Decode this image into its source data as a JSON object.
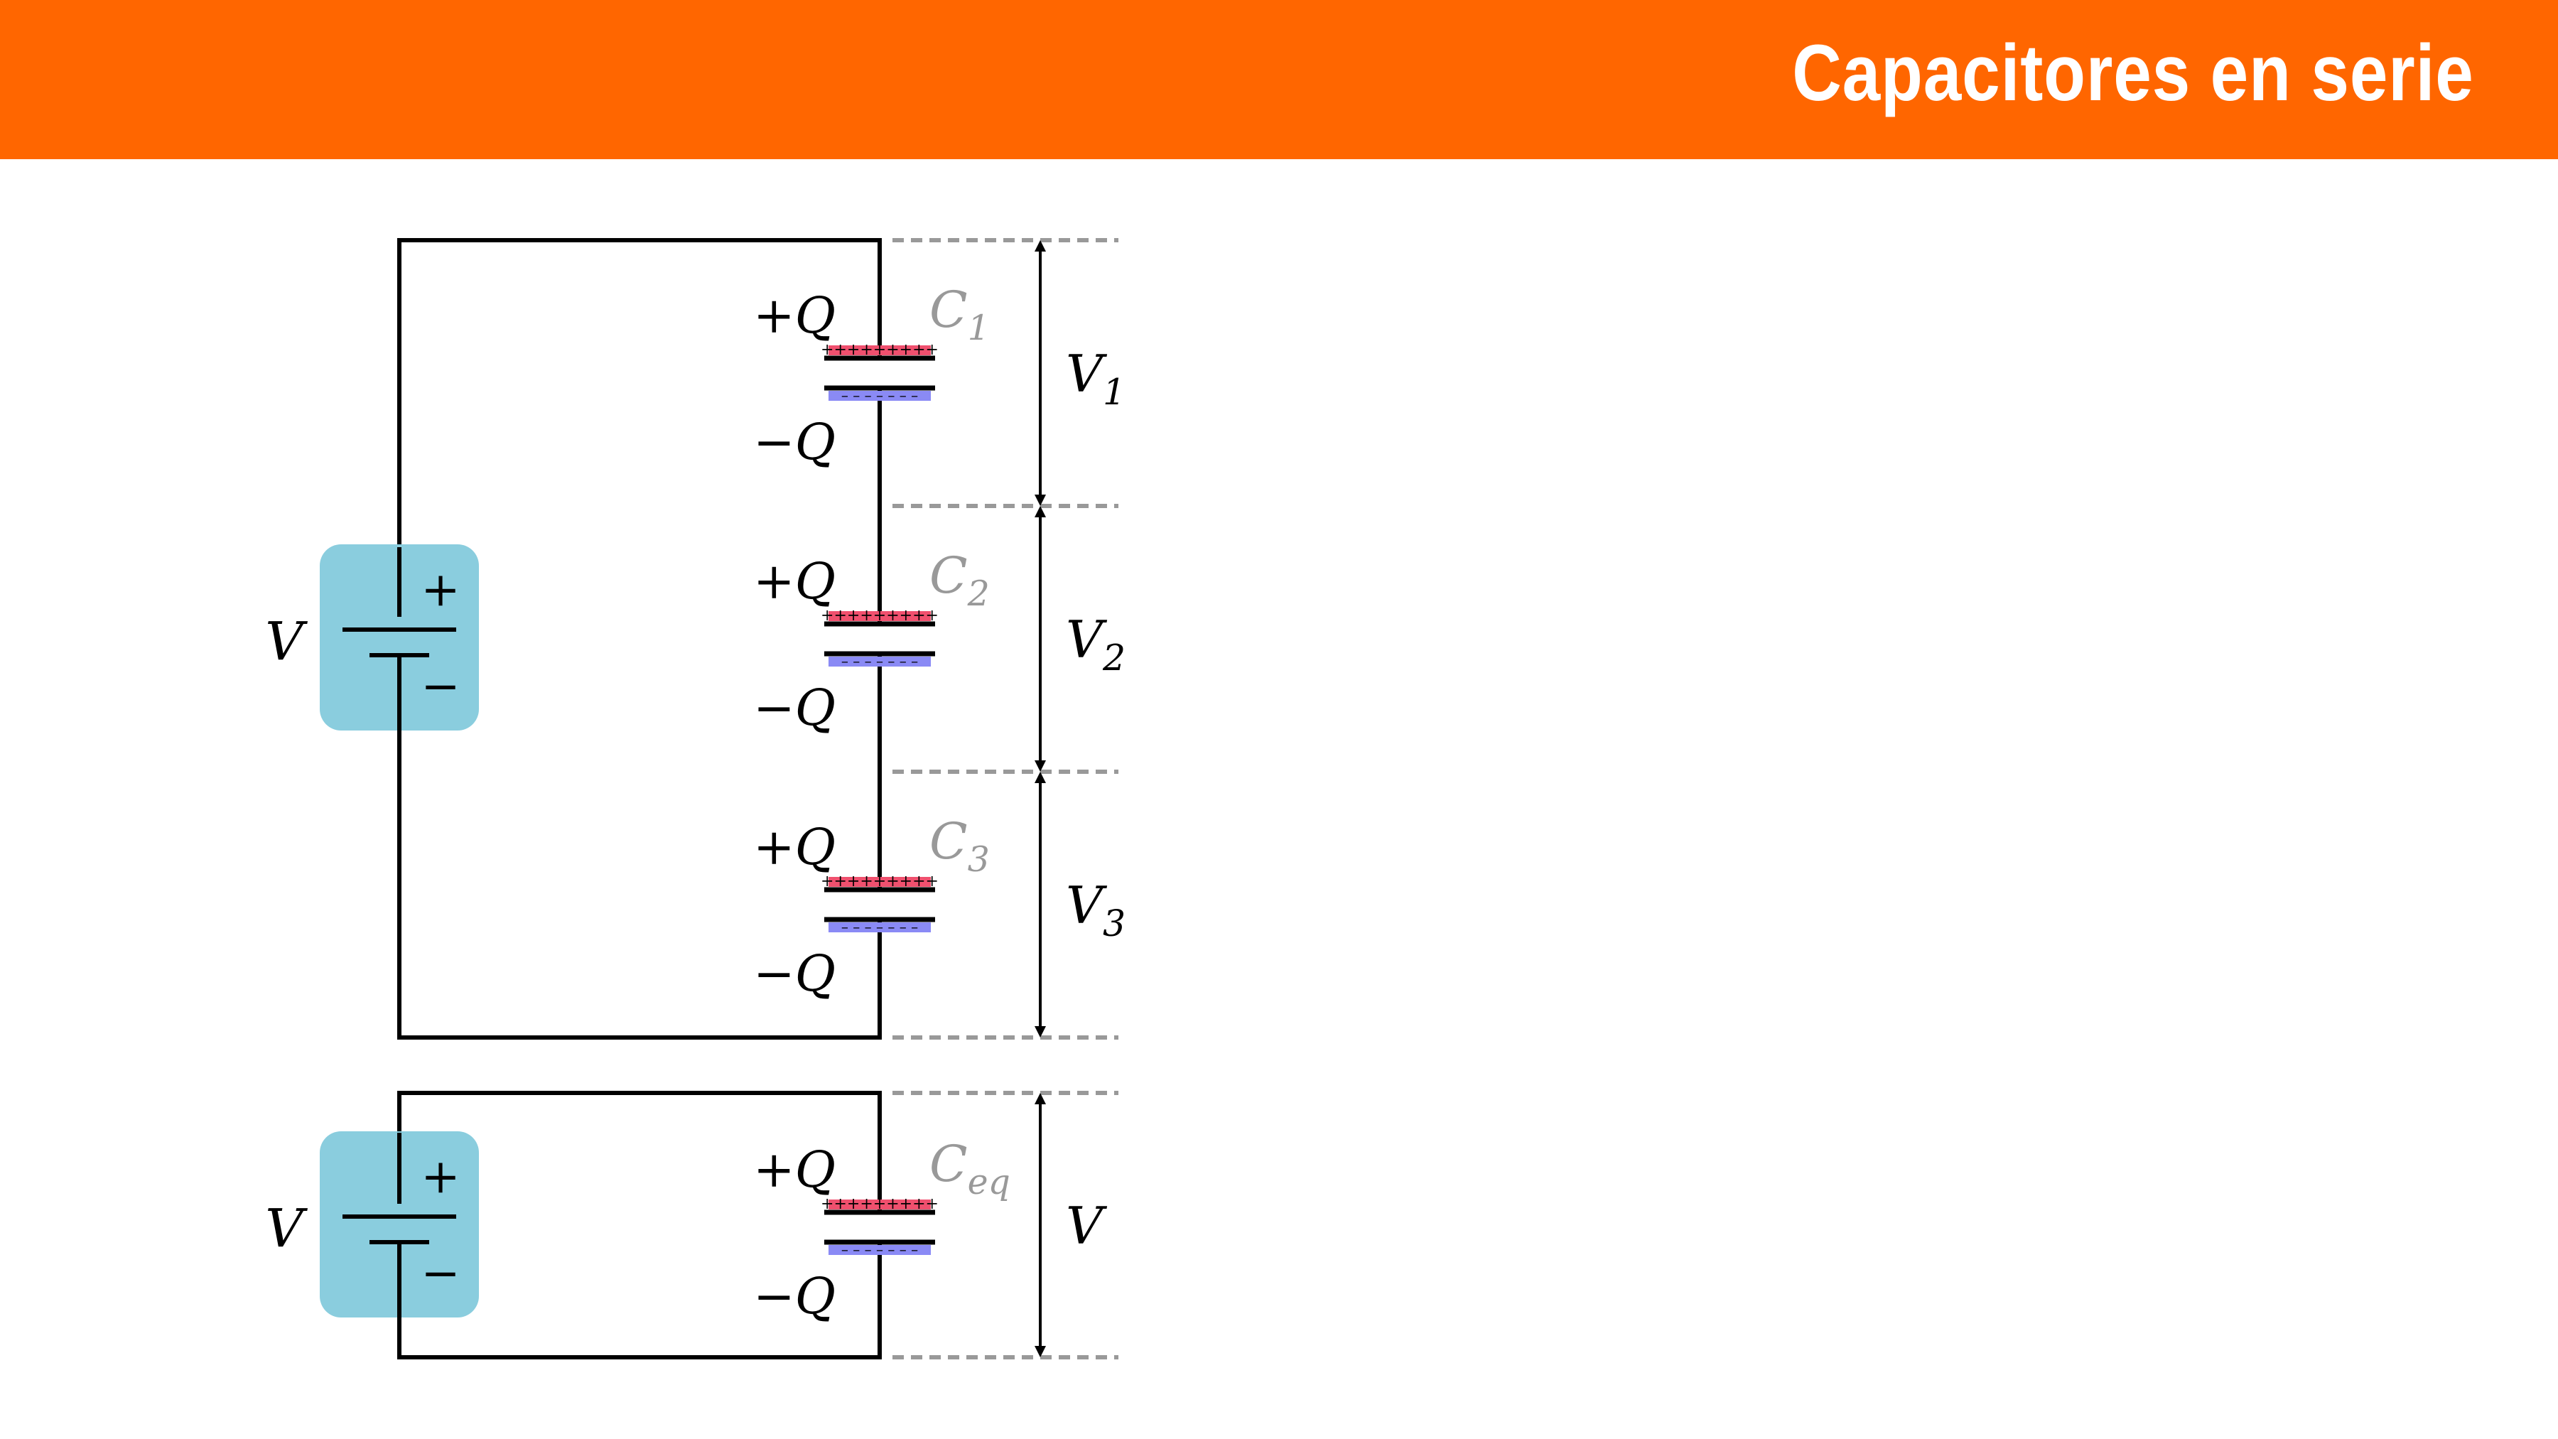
{
  "header": {
    "title": "Capacitores en serie",
    "background_color": "#FF6600",
    "text_color": "#FFFFFF"
  },
  "colors": {
    "wire": "#000000",
    "battery_fill": "#8ACDDE",
    "positive_charge": "#F0506E",
    "negative_charge": "#8A8AF5",
    "capacitor_label": "#999999",
    "guide_line": "#999999"
  },
  "series_circuit": {
    "battery": {
      "label": "V",
      "plus_sign": "+",
      "minus_sign": "−"
    },
    "capacitors": [
      {
        "name_main": "C",
        "name_sub": "1",
        "plus_label": "+Q",
        "minus_label": "−Q",
        "voltage_main": "V",
        "voltage_sub": "1",
        "plus_marks": "+++++++++",
        "minus_marks": "– – – – – – –"
      },
      {
        "name_main": "C",
        "name_sub": "2",
        "plus_label": "+Q",
        "minus_label": "−Q",
        "voltage_main": "V",
        "voltage_sub": "2",
        "plus_marks": "+++++++++",
        "minus_marks": "– – – – – – –"
      },
      {
        "name_main": "C",
        "name_sub": "3",
        "plus_label": "+Q",
        "minus_label": "−Q",
        "voltage_main": "V",
        "voltage_sub": "3",
        "plus_marks": "+++++++++",
        "minus_marks": "– – – – – – –"
      }
    ]
  },
  "equivalent_circuit": {
    "battery": {
      "label": "V",
      "plus_sign": "+",
      "minus_sign": "−"
    },
    "capacitor": {
      "name_main": "C",
      "name_sub": "eq",
      "plus_label": "+Q",
      "minus_label": "−Q",
      "voltage_main": "V",
      "voltage_sub": "",
      "plus_marks": "+++++++++",
      "minus_marks": "– – – – – – –"
    }
  }
}
